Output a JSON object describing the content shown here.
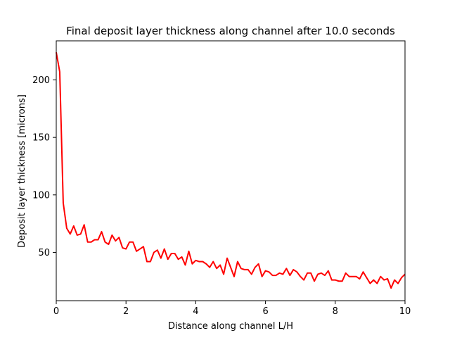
{
  "chart_data": {
    "type": "line",
    "title": "Final deposit layer thickness along channel after 10.0 seconds",
    "xlabel": "Distance along channel L/H",
    "ylabel": "Deposit layer thickness [microns]",
    "xlim": [
      0,
      10
    ],
    "ylim": [
      8,
      234
    ],
    "xticks": [
      0,
      2,
      4,
      6,
      8,
      10
    ],
    "yticks": [
      50,
      100,
      150,
      200
    ],
    "grid": false,
    "legend": "none",
    "series": [
      {
        "color": "#ff0000",
        "x": [
          0.0,
          0.1,
          0.2,
          0.3,
          0.4,
          0.5,
          0.6,
          0.7,
          0.8,
          0.9,
          1.0,
          1.1,
          1.2,
          1.3,
          1.4,
          1.5,
          1.6,
          1.7,
          1.8,
          1.9,
          2.0,
          2.1,
          2.2,
          2.3,
          2.4,
          2.5,
          2.6,
          2.7,
          2.8,
          2.9,
          3.0,
          3.1,
          3.2,
          3.3,
          3.4,
          3.5,
          3.6,
          3.7,
          3.8,
          3.9,
          4.0,
          4.1,
          4.2,
          4.3,
          4.4,
          4.5,
          4.6,
          4.7,
          4.8,
          4.9,
          5.0,
          5.1,
          5.2,
          5.3,
          5.4,
          5.5,
          5.6,
          5.7,
          5.8,
          5.9,
          6.0,
          6.1,
          6.2,
          6.3,
          6.4,
          6.5,
          6.6,
          6.7,
          6.8,
          6.9,
          7.0,
          7.1,
          7.2,
          7.3,
          7.4,
          7.5,
          7.6,
          7.7,
          7.8,
          7.9,
          8.0,
          8.1,
          8.2,
          8.3,
          8.4,
          8.5,
          8.6,
          8.7,
          8.8,
          8.9,
          9.0,
          9.1,
          9.2,
          9.3,
          9.4,
          9.5,
          9.6,
          9.7,
          9.8,
          9.9,
          10.0
        ],
        "y": [
          224,
          207,
          93,
          71,
          66,
          73,
          65,
          66,
          74,
          59,
          59,
          61,
          61,
          68,
          59,
          57,
          65,
          60,
          63,
          54,
          53,
          59,
          59,
          51,
          53,
          55,
          42,
          42,
          50,
          52,
          45,
          53,
          44,
          49,
          49,
          44,
          46,
          39,
          51,
          40,
          43,
          42,
          42,
          40,
          37,
          42,
          36,
          39,
          31,
          45,
          37,
          29,
          42,
          36,
          35,
          35,
          31,
          37,
          40,
          29,
          34,
          33,
          30,
          30,
          32,
          31,
          36,
          30,
          35,
          33,
          29,
          26,
          32,
          32,
          25,
          31,
          32,
          30,
          34,
          26,
          26,
          25,
          25,
          32,
          29,
          29,
          29,
          27,
          33,
          28,
          23,
          26,
          23,
          29,
          26,
          27,
          19,
          26,
          23,
          28,
          31
        ]
      }
    ]
  }
}
